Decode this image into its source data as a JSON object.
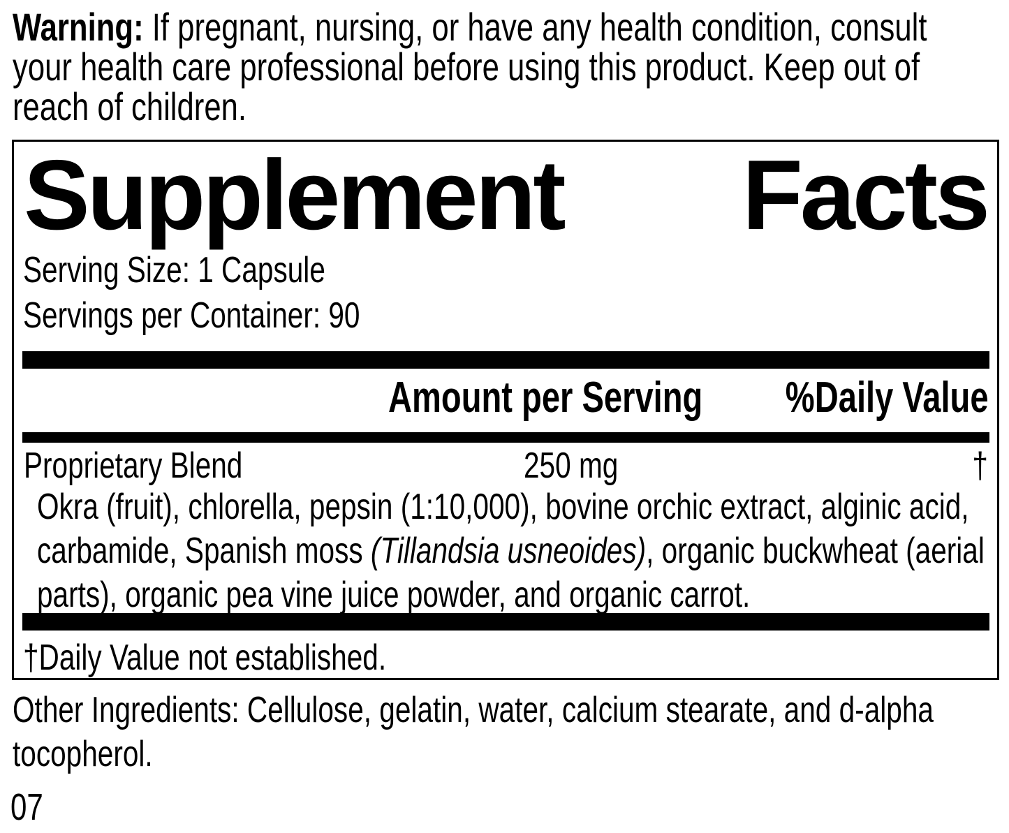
{
  "colors": {
    "background": "#ffffff",
    "text": "#000000",
    "rule": "#000000"
  },
  "warning": {
    "label": "Warning:",
    "line1_rest": " If pregnant, nursing, or have any health condition, consult",
    "line2": "your health care professional before using this product. Keep out of",
    "line3": "reach of children."
  },
  "panel": {
    "title_left": "Supplement",
    "title_right": "Facts",
    "serving_size": "Serving Size: 1 Capsule",
    "servings_per_container": "Servings per Container: 90",
    "header": {
      "amount": "Amount per Serving",
      "daily_value": "%Daily Value"
    },
    "blend": {
      "name": "Proprietary Blend",
      "amount": "250 mg",
      "daily_value_symbol": "†",
      "ingredients_line1": "Okra (fruit), chlorella, pepsin (1:10,000), bovine orchic extract, alginic acid,",
      "ingredients_line2_pre": "carbamide, Spanish moss ",
      "ingredients_line2_italic": "(Tillandsia usneoides)",
      "ingredients_line2_post": ", organic buckwheat (aerial",
      "ingredients_line3": "parts), organic pea vine juice powder, and organic carrot."
    },
    "footnote": "†Daily Value not established."
  },
  "other_ingredients": {
    "line1": "Other Ingredients: Cellulose, gelatin, water, calcium stearate, and d-alpha",
    "line2": "tocopherol."
  },
  "footer_code": "07"
}
